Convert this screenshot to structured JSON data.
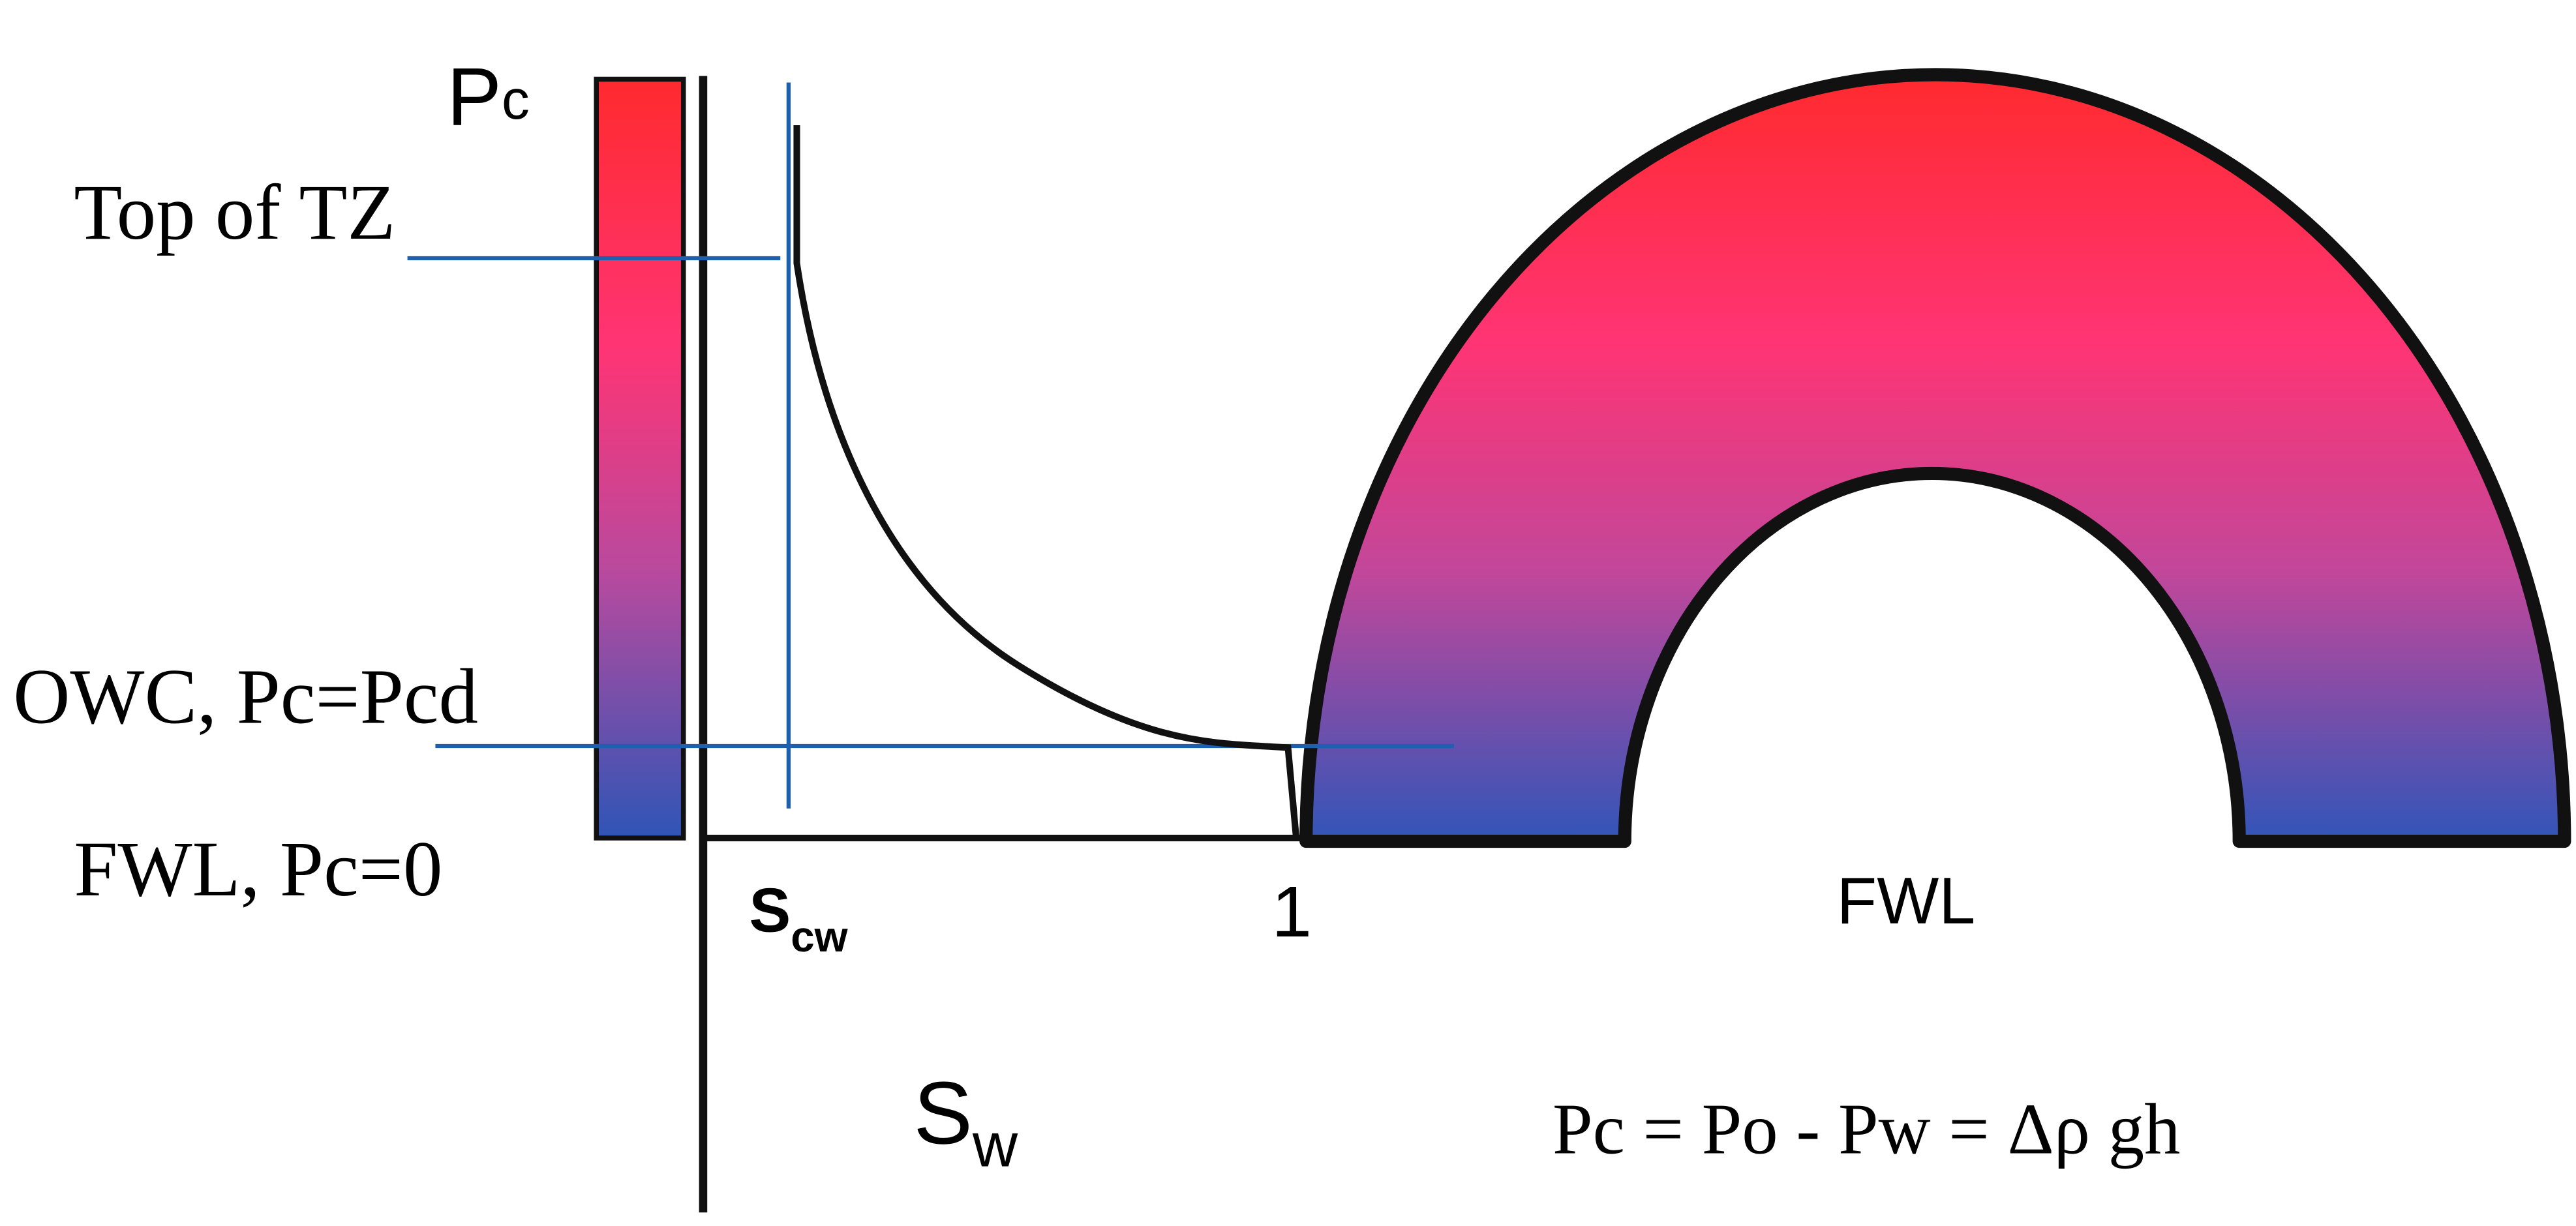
{
  "axis_label_pc": {
    "main": "P",
    "sub": "c"
  },
  "levels": {
    "top": "Top of TZ",
    "owc": "OWC, Pc=Pcd",
    "fwl": "FWL, Pc=0"
  },
  "x_labels": {
    "scw": {
      "main": "S",
      "sub": "cw"
    },
    "one": "1",
    "sw": {
      "main": "S",
      "sub": "w"
    }
  },
  "arch_label": "FWL",
  "formula": "Pc = Po - Pw = Δρ gh"
}
